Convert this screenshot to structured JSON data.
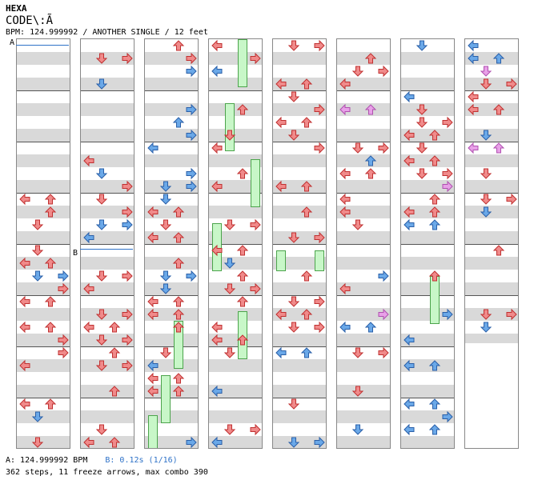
{
  "song_title": "HEXA",
  "song_subtitle": "CODE\\:Ã",
  "chart_info": "BPM: 124.999992 / ANOTHER SINGLE / 12 feet",
  "marker_a": "A",
  "marker_b": "B",
  "footer": {
    "bpm_a": "A: 124.999992 BPM",
    "stop_b": "B: 0.12s (1/16)",
    "stats": "362 steps, 11 freeze arrows, max combo 390"
  },
  "colors": {
    "quarter": "#f08a8a",
    "eighth": "#6aa8e8",
    "sixteenth": "#e8a0e8",
    "freeze": "#c8f7c8"
  }
}
